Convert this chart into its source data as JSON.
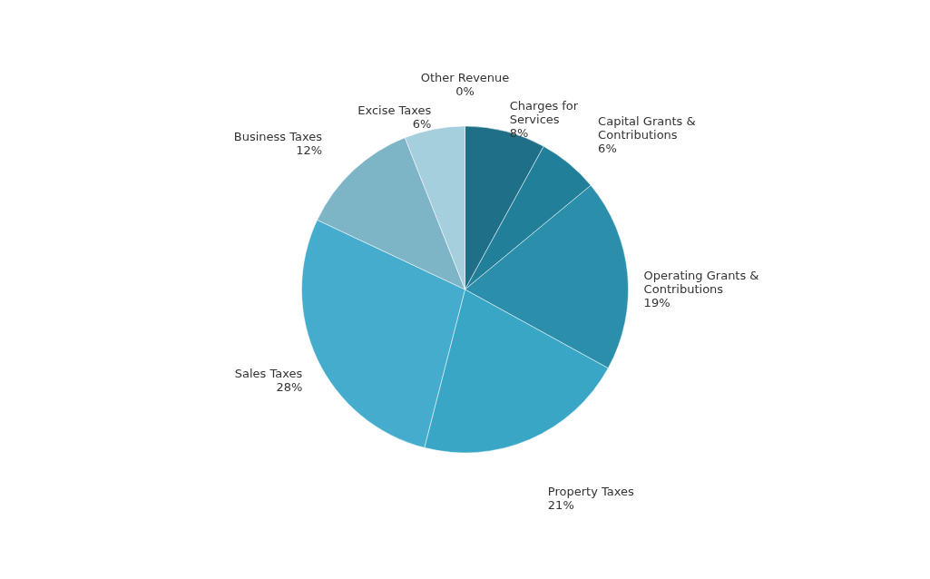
{
  "chart_data": {
    "type": "pie",
    "categories": [
      "Other Revenue",
      "Charges for Services",
      "Capital Grants & Contributions",
      "Operating Grants & Contributions",
      "Property Taxes",
      "Sales Taxes",
      "Business Taxes",
      "Excise Taxes"
    ],
    "values": [
      0,
      8,
      6,
      19,
      21,
      28,
      12,
      6
    ],
    "value_labels": [
      "0%",
      "8%",
      "6%",
      "19%",
      "21%",
      "28%",
      "12%",
      "6%"
    ],
    "colors": [
      "#1a6076",
      "#1e6f87",
      "#217f99",
      "#2b8eab",
      "#39a6c6",
      "#45acce",
      "#7db5c7",
      "#a6cfdd"
    ]
  }
}
